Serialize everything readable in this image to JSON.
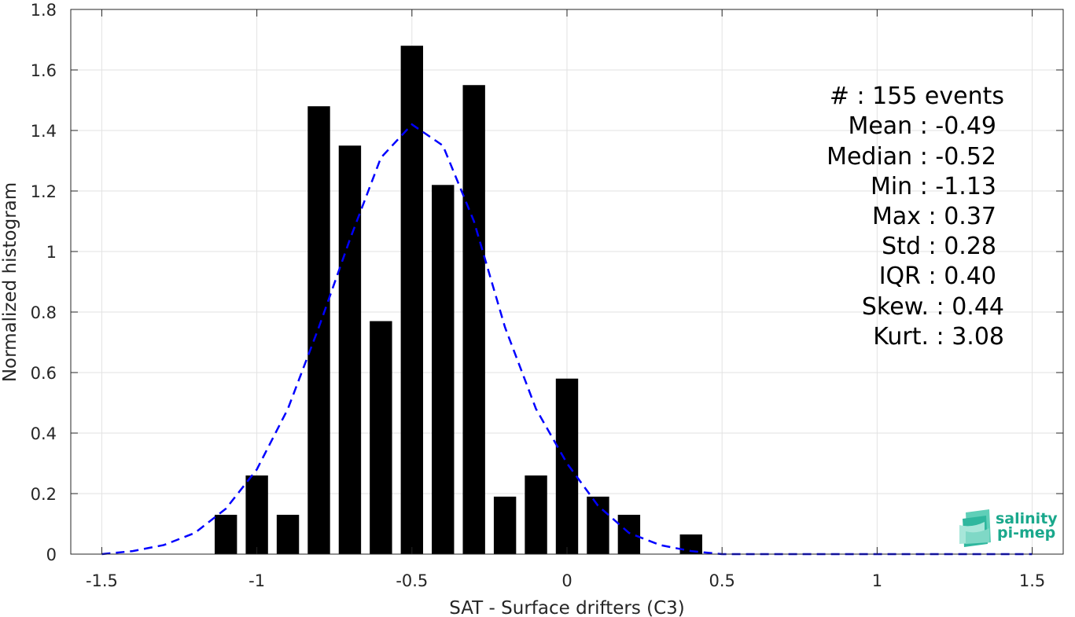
{
  "chart_data": {
    "type": "bar",
    "xlabel": "SAT - Surface drifters (C3)",
    "ylabel": "Normalized histogram",
    "xlim": [
      -1.6,
      1.6
    ],
    "ylim": [
      0,
      1.8
    ],
    "xticks": [
      -1.5,
      -1,
      -0.5,
      0,
      0.5,
      1,
      1.5
    ],
    "xtick_labels": [
      "-1.5",
      "-1",
      "-0.5",
      "0",
      "0.5",
      "1",
      "1.5"
    ],
    "yticks": [
      0,
      0.2,
      0.4,
      0.6,
      0.8,
      1,
      1.2,
      1.4,
      1.6,
      1.8
    ],
    "ytick_labels": [
      "0",
      "0.2",
      "0.4",
      "0.6",
      "0.8",
      "1",
      "1.2",
      "1.4",
      "1.6",
      "1.8"
    ],
    "grid": true,
    "bar_color": "#000000",
    "bar_width": 0.072,
    "bars": {
      "x": [
        -1.1,
        -1.0,
        -0.9,
        -0.8,
        -0.7,
        -0.6,
        -0.5,
        -0.4,
        -0.3,
        -0.2,
        -0.1,
        0.0,
        0.1,
        0.2,
        0.4
      ],
      "values": [
        0.13,
        0.26,
        0.13,
        1.48,
        1.35,
        0.77,
        1.68,
        1.22,
        1.55,
        0.19,
        0.26,
        0.58,
        0.19,
        0.13,
        0.065
      ]
    },
    "fit_curve": {
      "style": "dashed",
      "color": "#0000ff",
      "x": [
        -1.5,
        -1.4,
        -1.3,
        -1.2,
        -1.1,
        -1.0,
        -0.9,
        -0.8,
        -0.7,
        -0.6,
        -0.5,
        -0.4,
        -0.3,
        -0.2,
        -0.1,
        0.0,
        0.1,
        0.2,
        0.3,
        0.4,
        0.5,
        0.6,
        0.7,
        0.8,
        0.9,
        1.0,
        1.1,
        1.2,
        1.3,
        1.4,
        1.5
      ],
      "y": [
        0.0,
        0.01,
        0.03,
        0.07,
        0.15,
        0.28,
        0.48,
        0.75,
        1.04,
        1.31,
        1.42,
        1.35,
        1.1,
        0.75,
        0.48,
        0.3,
        0.16,
        0.07,
        0.03,
        0.01,
        0.0,
        0.0,
        0.0,
        0.0,
        0.0,
        0.0,
        0.0,
        0.0,
        0.0,
        0.0,
        0.0
      ]
    },
    "annotations": [
      "#  : 155 events",
      "Mean : -0.49",
      "Median : -0.52",
      "Min : -1.13",
      "Max : 0.37",
      "Std : 0.28",
      "IQR : 0.40",
      "Skew. : 0.44",
      "Kurt. : 3.08"
    ]
  },
  "logo": {
    "line1": "salinity",
    "line2": "pi-mep"
  }
}
